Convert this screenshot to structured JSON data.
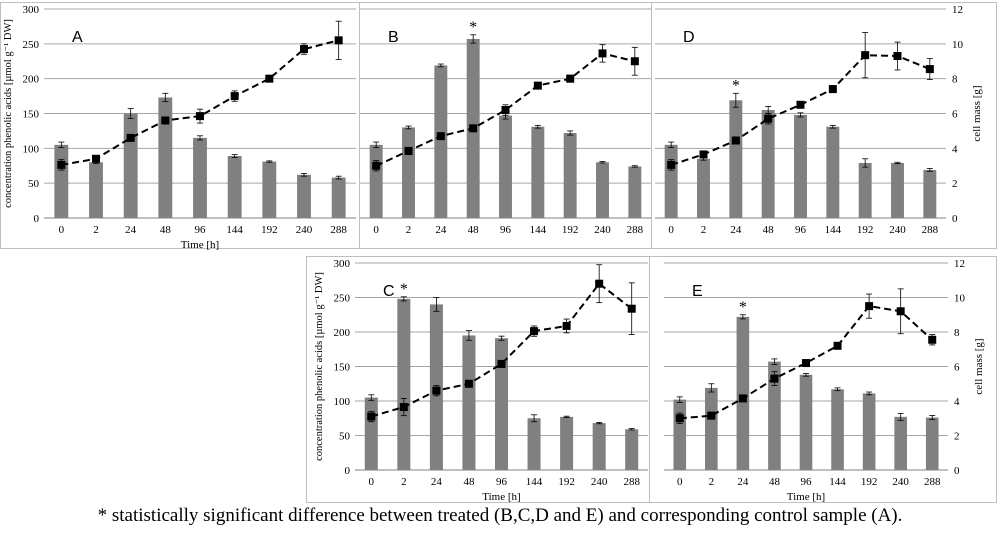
{
  "footnote": "* statistically significant difference between treated (B,C,D and E) and corresponding control sample (A).",
  "colors": {
    "bar": "#808080",
    "line": "#000000",
    "grid": "#a6a6a6",
    "frame": "#bfbfbf"
  },
  "chart_data": [
    {
      "panel": "A",
      "type": "bar+line",
      "categories": [
        "0",
        "2",
        "24",
        "48",
        "96",
        "144",
        "192",
        "240",
        "288"
      ],
      "xlabel": "Time [h]",
      "ylabel": "concentration phenolic acids [µmol g⁻¹ DW]",
      "y2label": "",
      "ylim": [
        0,
        300
      ],
      "yticks": [
        "0",
        "50",
        "100",
        "150",
        "200",
        "250",
        "300"
      ],
      "y2lim": [
        0,
        12
      ],
      "y2ticks": [],
      "grid": true,
      "series": [
        {
          "kind": "bar",
          "values": [
            105,
            80,
            150,
            173,
            115,
            89,
            81,
            62,
            58
          ],
          "errors": [
            4,
            2,
            7,
            6,
            3,
            2,
            1,
            2,
            2
          ]
        },
        {
          "kind": "line",
          "axis": "right",
          "values": [
            3.05,
            3.4,
            4.6,
            5.6,
            5.85,
            7.0,
            8.0,
            9.7,
            10.2
          ],
          "errors": [
            0.3,
            0.1,
            0.15,
            0.2,
            0.4,
            0.3,
            0.1,
            0.3,
            1.1
          ]
        }
      ],
      "annotations": []
    },
    {
      "panel": "B",
      "type": "bar+line",
      "categories": [
        "0",
        "2",
        "24",
        "48",
        "96",
        "144",
        "192",
        "240",
        "288"
      ],
      "xlabel": "",
      "ylabel": "",
      "y2label": "",
      "ylim": [
        0,
        300
      ],
      "yticks": [],
      "y2lim": [
        0,
        12
      ],
      "y2ticks": [],
      "grid": true,
      "series": [
        {
          "kind": "bar",
          "values": [
            105,
            130,
            219,
            257,
            147,
            131,
            122,
            80,
            74
          ],
          "errors": [
            4,
            2,
            2,
            6,
            5,
            2,
            3,
            1,
            1
          ]
        },
        {
          "kind": "line",
          "axis": "right",
          "values": [
            3.0,
            3.85,
            4.7,
            5.15,
            6.2,
            7.6,
            8.0,
            9.45,
            9.0
          ],
          "errors": [
            0.3,
            0.2,
            0.1,
            0.1,
            0.3,
            0.1,
            0.2,
            0.5,
            0.8
          ]
        }
      ],
      "annotations": [
        {
          "category": "48",
          "text": "*"
        }
      ]
    },
    {
      "panel": "D",
      "type": "bar+line",
      "categories": [
        "0",
        "2",
        "24",
        "48",
        "96",
        "144",
        "192",
        "240",
        "288"
      ],
      "xlabel": "",
      "ylabel": "",
      "y2label": "cell mass [g]",
      "ylim": [
        0,
        300
      ],
      "yticks": [],
      "y2lim": [
        0,
        12
      ],
      "y2ticks": [
        "0",
        "2",
        "4",
        "6",
        "8",
        "10",
        "12"
      ],
      "grid": true,
      "series": [
        {
          "kind": "bar",
          "values": [
            105,
            85,
            169,
            155,
            148,
            131,
            79,
            79,
            69
          ],
          "errors": [
            4,
            2,
            10,
            5,
            3,
            2,
            6,
            1,
            2
          ]
        },
        {
          "kind": "line",
          "axis": "right",
          "values": [
            3.05,
            3.65,
            4.45,
            5.7,
            6.5,
            7.4,
            9.35,
            9.3,
            8.55
          ],
          "errors": [
            0.3,
            0.1,
            0.2,
            0.3,
            0.1,
            0.2,
            1.3,
            0.8,
            0.6
          ]
        }
      ],
      "annotations": [
        {
          "category": "24",
          "text": "*"
        }
      ]
    },
    {
      "panel": "C",
      "type": "bar+line",
      "categories": [
        "0",
        "2",
        "24",
        "48",
        "96",
        "144",
        "192",
        "240",
        "288"
      ],
      "xlabel": "Time [h]",
      "ylabel": "concentration phenolic acids [µmol g⁻¹ DW]",
      "y2label": "",
      "ylim": [
        0,
        300
      ],
      "yticks": [
        "0",
        "50",
        "100",
        "150",
        "200",
        "250",
        "300"
      ],
      "y2lim": [
        0,
        12
      ],
      "y2ticks": [],
      "grid": true,
      "series": [
        {
          "kind": "bar",
          "values": [
            105,
            248,
            240,
            195,
            191,
            75,
            77,
            68,
            59
          ],
          "errors": [
            4,
            3,
            10,
            7,
            3,
            5,
            1,
            1,
            1
          ]
        },
        {
          "kind": "line",
          "axis": "right",
          "values": [
            3.1,
            3.65,
            4.6,
            5.0,
            6.15,
            8.05,
            8.35,
            10.8,
            9.35
          ],
          "errors": [
            0.3,
            0.5,
            0.3,
            0.1,
            0.2,
            0.3,
            0.4,
            1.1,
            1.5
          ]
        }
      ],
      "annotations": [
        {
          "category": "2",
          "text": "*"
        }
      ]
    },
    {
      "panel": "E",
      "type": "bar+line",
      "categories": [
        "0",
        "2",
        "24",
        "48",
        "96",
        "144",
        "192",
        "240",
        "288"
      ],
      "xlabel": "Time [h]",
      "ylabel": "",
      "y2label": "cell mass [g]",
      "ylim": [
        0,
        300
      ],
      "yticks": [],
      "y2lim": [
        0,
        12
      ],
      "y2ticks": [
        "0",
        "2",
        "4",
        "6",
        "8",
        "10",
        "12"
      ],
      "grid": true,
      "series": [
        {
          "kind": "bar",
          "values": [
            102,
            119,
            222,
            157,
            138,
            117,
            111,
            77,
            76
          ],
          "errors": [
            4,
            6,
            3,
            4,
            2,
            2,
            2,
            5,
            3
          ]
        },
        {
          "kind": "line",
          "axis": "right",
          "values": [
            3.0,
            3.15,
            4.15,
            5.3,
            6.2,
            7.2,
            9.5,
            9.2,
            7.55
          ],
          "errors": [
            0.3,
            0.1,
            0.1,
            0.4,
            0.1,
            0.1,
            0.7,
            1.3,
            0.3
          ]
        }
      ],
      "annotations": [
        {
          "category": "24",
          "text": "*"
        }
      ]
    }
  ]
}
